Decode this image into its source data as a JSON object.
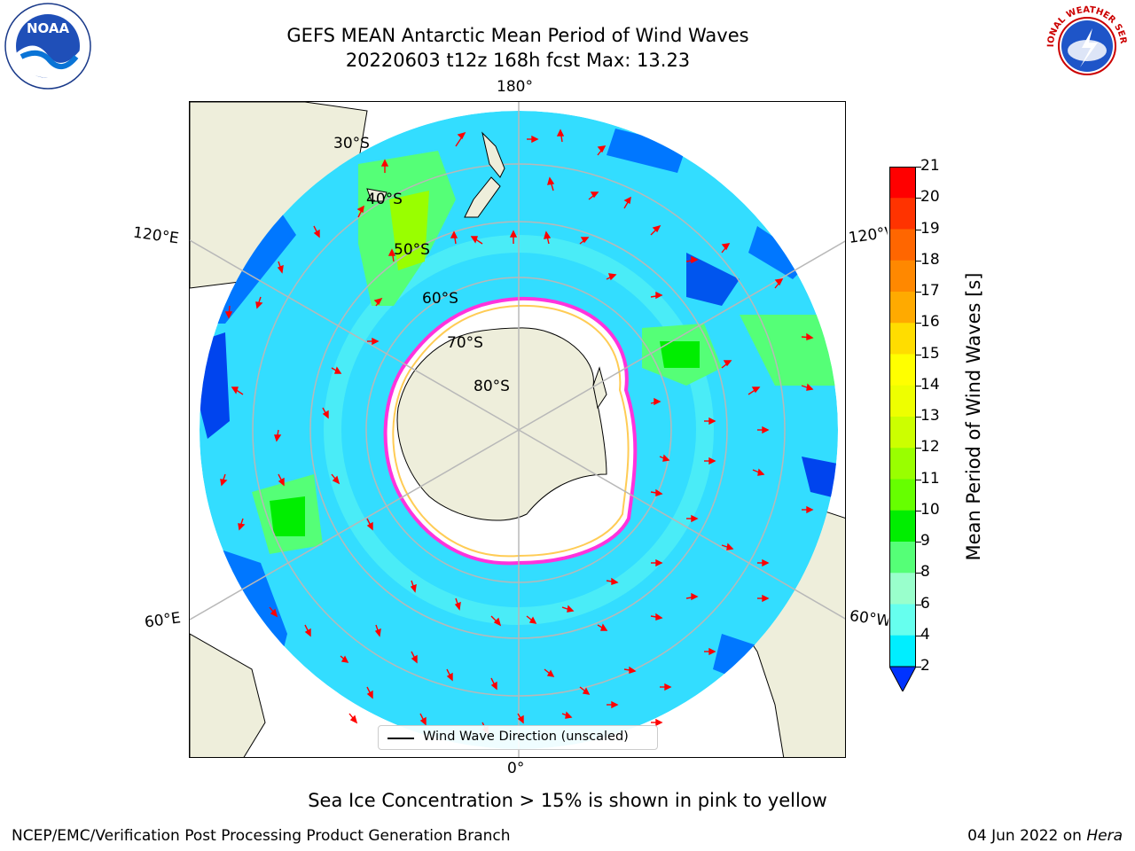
{
  "title_line1": "GEFS MEAN Antarctic Mean Period of Wind Waves",
  "title_line2": "20220603 t12z 168h fcst   Max: 13.23",
  "longitude_labels": {
    "top": "180°",
    "bottom": "0°",
    "upper_left": "120°E",
    "upper_right": "120°W",
    "lower_left": "60°E",
    "lower_right": "60°W"
  },
  "latitude_labels": [
    "30°S",
    "40°S",
    "50°S",
    "60°S",
    "70°S",
    "80°S"
  ],
  "legend_label": "Wind Wave Direction (unscaled)",
  "colorbar": {
    "label": "Mean Period of Wind Waves [s]",
    "ticks": [
      "21",
      "20",
      "19",
      "18",
      "17",
      "16",
      "15",
      "14",
      "13",
      "12",
      "11",
      "10",
      "9",
      "8",
      "6",
      "4",
      "2"
    ],
    "colors": [
      "#ff0000",
      "#ff3300",
      "#ff6600",
      "#ff8800",
      "#ffaa00",
      "#ffdd00",
      "#ffff00",
      "#eeff00",
      "#ccff00",
      "#99ff00",
      "#66ff00",
      "#00ee00",
      "#55ff77",
      "#99ffcc",
      "#66ffee",
      "#00eeff",
      "#00bbff",
      "#0077ff",
      "#0033ff"
    ]
  },
  "colors": {
    "land": "#eeeedb",
    "ocean_base": "#33ddff",
    "ocean_deep": "#0044ee",
    "arrow": "#ff0000",
    "ice_edge": "#ff33dd",
    "grid": "#b8b8b8"
  },
  "footnote": "Sea Ice Concentration > 15% is shown in pink to yellow",
  "credit": "NCEP/EMC/Verification Post Processing Product Generation Branch",
  "date_text": "04 Jun 2022 on ",
  "machine": "Hera",
  "logos": {
    "left": "NOAA",
    "right": "NATIONAL WEATHER SERVICE"
  }
}
